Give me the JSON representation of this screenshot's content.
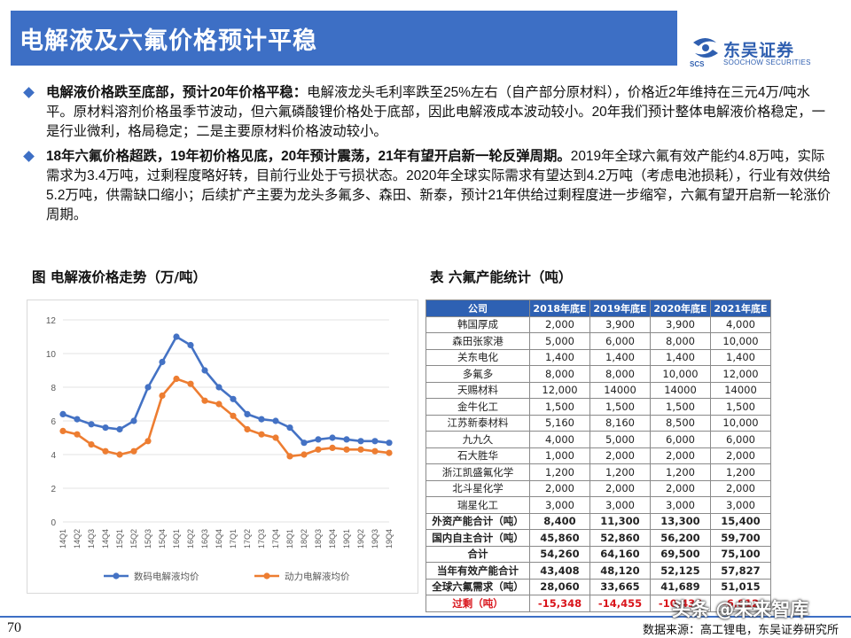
{
  "header": {
    "title": "电解液及六氟价格预计平稳"
  },
  "logo": {
    "name": "东吴证券",
    "sub": "SOOCHOW SECURITIES",
    "abbr": "SCS"
  },
  "bullets": [
    {
      "bold": "电解液价格跌至底部，预计20年价格平稳：",
      "text": "电解液龙头毛利率跌至25%左右（自产部分原材料），价格近2年维持在三元4万/吨水平。原材料溶剂价格虽季节波动，但六氟磷酸锂价格处于底部，因此电解液成本波动较小。20年我们预计整体电解液价格稳定，一是行业微利，格局稳定；二是主要原材料价格波动较小。"
    },
    {
      "bold": "18年六氟价格超跌，19年初价格见底，20年预计震荡，21年有望开启新一轮反弹周期。",
      "text": "2019年全球六氟有效产能约4.8万吨，实际需求为3.4万吨，过剩程度略好转，目前行业处于亏损状态。2020年全球实际需求有望达到4.2万吨（考虑电池损耗），行业有效供给5.2万吨，供需缺口缩小；后续扩产主要为龙头多氟多、森田、新泰，预计21年供给过剩程度进一步缩窄，六氟有望开启新一轮涨价周期。"
    }
  ],
  "chart_caption": "图  电解液价格走势（万/吨）",
  "table_caption": "表  六氟产能统计（吨）",
  "chart_data": {
    "type": "line",
    "categories": [
      "14Q1",
      "14Q2",
      "14Q3",
      "14Q4",
      "15Q1",
      "15Q2",
      "15Q3",
      "15Q4",
      "16Q1",
      "16Q2",
      "16Q3",
      "16Q4",
      "17Q1",
      "17Q2",
      "17Q3",
      "17Q4",
      "18Q1",
      "18Q2",
      "18Q3",
      "18Q4",
      "19Q1",
      "19Q2",
      "19Q3",
      "19Q4"
    ],
    "series": [
      {
        "name": "数码电解液均价",
        "color": "#4472c4",
        "values": [
          6.4,
          6.1,
          5.8,
          5.6,
          5.5,
          6.0,
          8.0,
          9.5,
          11.0,
          10.5,
          9.0,
          8.0,
          7.3,
          6.4,
          6.1,
          6.0,
          5.6,
          4.7,
          4.9,
          5.0,
          4.9,
          4.8,
          4.8,
          4.7
        ]
      },
      {
        "name": "动力电解液均价",
        "color": "#ed7d31",
        "values": [
          5.4,
          5.2,
          4.6,
          4.2,
          4.0,
          4.2,
          4.8,
          7.5,
          8.5,
          8.2,
          7.2,
          7.0,
          6.3,
          5.5,
          5.2,
          5.0,
          3.9,
          4.0,
          4.3,
          4.4,
          4.3,
          4.3,
          4.2,
          4.1
        ]
      }
    ],
    "yticks": [
      "0",
      "2",
      "4",
      "6",
      "8",
      "10",
      "12"
    ],
    "ylim": [
      0,
      12
    ],
    "grid": true,
    "legend": "bottom"
  },
  "table": {
    "headers": [
      "公司",
      "2018年底E",
      "2019年底E",
      "2020年底E",
      "2021年底E"
    ],
    "rows": [
      [
        "韩国厚成",
        "2,000",
        "3,900",
        "3,900",
        "4,000"
      ],
      [
        "森田张家港",
        "5,000",
        "6,000",
        "8,000",
        "10,000"
      ],
      [
        "关东电化",
        "1,400",
        "1,400",
        "1,400",
        "1,400"
      ],
      [
        "多氟多",
        "8,000",
        "8,000",
        "10,000",
        "12,000"
      ],
      [
        "天赐材料",
        "12,000",
        "14000",
        "14000",
        "14000"
      ],
      [
        "金牛化工",
        "1,500",
        "1,500",
        "1,500",
        "1,500"
      ],
      [
        "江苏新泰材料",
        "5,160",
        "8,160",
        "8,500",
        "10,000"
      ],
      [
        "九九久",
        "4,000",
        "5,000",
        "6,000",
        "6,000"
      ],
      [
        "石大胜华",
        "1,000",
        "2,000",
        "2,000",
        "2,000"
      ],
      [
        "浙江凯盛氟化学",
        "1,200",
        "1,200",
        "1,200",
        "1,200"
      ],
      [
        "北斗星化学",
        "2,000",
        "2,000",
        "2,000",
        "2,000"
      ],
      [
        "瑞星化工",
        "3,000",
        "3,000",
        "3,000",
        "3,000"
      ]
    ],
    "summary_rows": [
      [
        "外资产能合计（吨）",
        "8,400",
        "11,300",
        "13,300",
        "15,400"
      ],
      [
        "国内自主合计（吨）",
        "45,860",
        "52,860",
        "56,200",
        "59,700"
      ],
      [
        "合计",
        "54,260",
        "64,160",
        "69,500",
        "75,100"
      ],
      [
        "当年有效产能合计",
        "43,408",
        "48,120",
        "52,125",
        "57,827"
      ],
      [
        "全球六氟需求（吨）",
        "28,060",
        "33,665",
        "41,689",
        "51,015"
      ]
    ],
    "negative_row": [
      "过剩（吨）",
      "-15,348",
      "-14,455",
      "-10,436",
      "-6,812"
    ]
  },
  "footer": {
    "page": "70",
    "source": "数据来源：高工锂电，东吴证券研究所"
  },
  "watermark": "头条 @未来智库"
}
